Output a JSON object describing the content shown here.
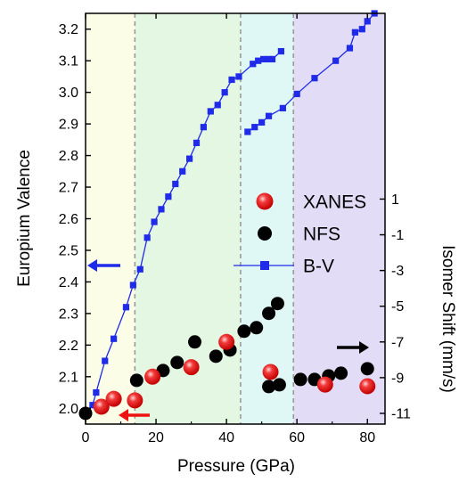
{
  "chart_data": {
    "type": "scatter",
    "xlabel": "Pressure (GPa)",
    "ylabel": "Europium Valence",
    "y2label": "Isomer Shift (mm/s)",
    "xlim": [
      0,
      85
    ],
    "ylim": [
      1.95,
      3.25
    ],
    "y2lim": [
      -11.6,
      11.4
    ],
    "xticks": [
      "0",
      "20",
      "40",
      "60",
      "80"
    ],
    "yticks": [
      "2.0",
      "2.1",
      "2.2",
      "2.3",
      "2.4",
      "2.5",
      "2.6",
      "2.7",
      "2.8",
      "2.9",
      "3.0",
      "3.1",
      "3.2"
    ],
    "y2ticks": [
      "-11",
      "-9",
      "-7",
      "-5",
      "-3",
      "-1",
      "1"
    ],
    "regions": [
      {
        "x0": 0,
        "x1": 14,
        "color": "#fbfde6"
      },
      {
        "x0": 14,
        "x1": 44,
        "color": "#e4f7e2"
      },
      {
        "x0": 44,
        "x1": 59,
        "color": "#dff8f6"
      },
      {
        "x0": 59,
        "x1": 85,
        "color": "#e2dcf7"
      }
    ],
    "boundaries": [
      14,
      44,
      59
    ],
    "series": [
      {
        "name": "XANES",
        "axis": "left",
        "color": "#ee1111",
        "points": [
          [
            4.5,
            2.005
          ],
          [
            8,
            2.03
          ],
          [
            14,
            2.025
          ],
          [
            19,
            2.1
          ],
          [
            30,
            2.13
          ],
          [
            40,
            2.21
          ],
          [
            52.5,
            2.115
          ],
          [
            68,
            2.075
          ],
          [
            80,
            2.07
          ]
        ]
      },
      {
        "name": "NFS",
        "axis": "right",
        "color": "#000000",
        "points": [
          [
            0,
            -11.0
          ],
          [
            14.5,
            -9.15
          ],
          [
            22,
            -8.6
          ],
          [
            26,
            -8.15
          ],
          [
            31,
            -7.0
          ],
          [
            37,
            -7.8
          ],
          [
            41,
            -7.45
          ],
          [
            45,
            -6.4
          ],
          [
            48.5,
            -6.2
          ],
          [
            52,
            -5.4
          ],
          [
            54.5,
            -4.85
          ],
          [
            52,
            -9.5
          ],
          [
            55,
            -9.4
          ],
          [
            61,
            -9.1
          ],
          [
            65,
            -9.1
          ],
          [
            69,
            -8.9
          ],
          [
            72.5,
            -8.75
          ],
          [
            80,
            -8.5
          ]
        ]
      },
      {
        "name": "B-V",
        "axis": "left",
        "color": "#1f2be8",
        "segments": [
          [
            [
              0,
              1.98
            ],
            [
              2,
              2.01
            ],
            [
              3,
              2.05
            ],
            [
              5.5,
              2.15
            ],
            [
              8,
              2.22
            ],
            [
              11.5,
              2.32
            ],
            [
              13.5,
              2.39
            ],
            [
              15.5,
              2.44
            ],
            [
              17.5,
              2.54
            ],
            [
              19.5,
              2.59
            ],
            [
              21.5,
              2.63
            ],
            [
              23.5,
              2.67
            ],
            [
              25.5,
              2.71
            ],
            [
              27.5,
              2.75
            ],
            [
              29.5,
              2.79
            ],
            [
              31.5,
              2.84
            ],
            [
              33.5,
              2.89
            ],
            [
              35.5,
              2.94
            ],
            [
              37.5,
              2.96
            ],
            [
              39.5,
              3.0
            ],
            [
              41.5,
              3.04
            ],
            [
              43.5,
              3.05
            ],
            [
              47.5,
              3.09
            ],
            [
              49,
              3.1
            ],
            [
              50.5,
              3.105
            ],
            [
              52,
              3.105
            ],
            [
              53,
              3.105
            ],
            [
              55.5,
              3.13
            ]
          ],
          [
            [
              46,
              2.875
            ],
            [
              48,
              2.89
            ],
            [
              50,
              2.905
            ],
            [
              52,
              2.925
            ],
            [
              56,
              2.95
            ],
            [
              60,
              2.995
            ],
            [
              65,
              3.045
            ],
            [
              71,
              3.1
            ],
            [
              75,
              3.14
            ],
            [
              76.5,
              3.19
            ],
            [
              78.5,
              3.2
            ],
            [
              80,
              3.225
            ],
            [
              82,
              3.25
            ]
          ]
        ]
      }
    ],
    "legend": [
      {
        "label": "XANES",
        "marker": "circle",
        "color": "#ee1111"
      },
      {
        "label": "NFS",
        "marker": "circle",
        "color": "#000000"
      },
      {
        "label": "B-V",
        "marker": "square-line",
        "color": "#1f2be8"
      }
    ],
    "arrows": [
      {
        "direction": "left",
        "color": "#1f2be8",
        "side": "left axis",
        "at_y": 2.455
      },
      {
        "direction": "left",
        "color": "#ee1111",
        "side": "bottom",
        "at_y": 1.995
      },
      {
        "direction": "right",
        "color": "#000000",
        "side": "right axis",
        "at_y": 2.13
      }
    ]
  }
}
